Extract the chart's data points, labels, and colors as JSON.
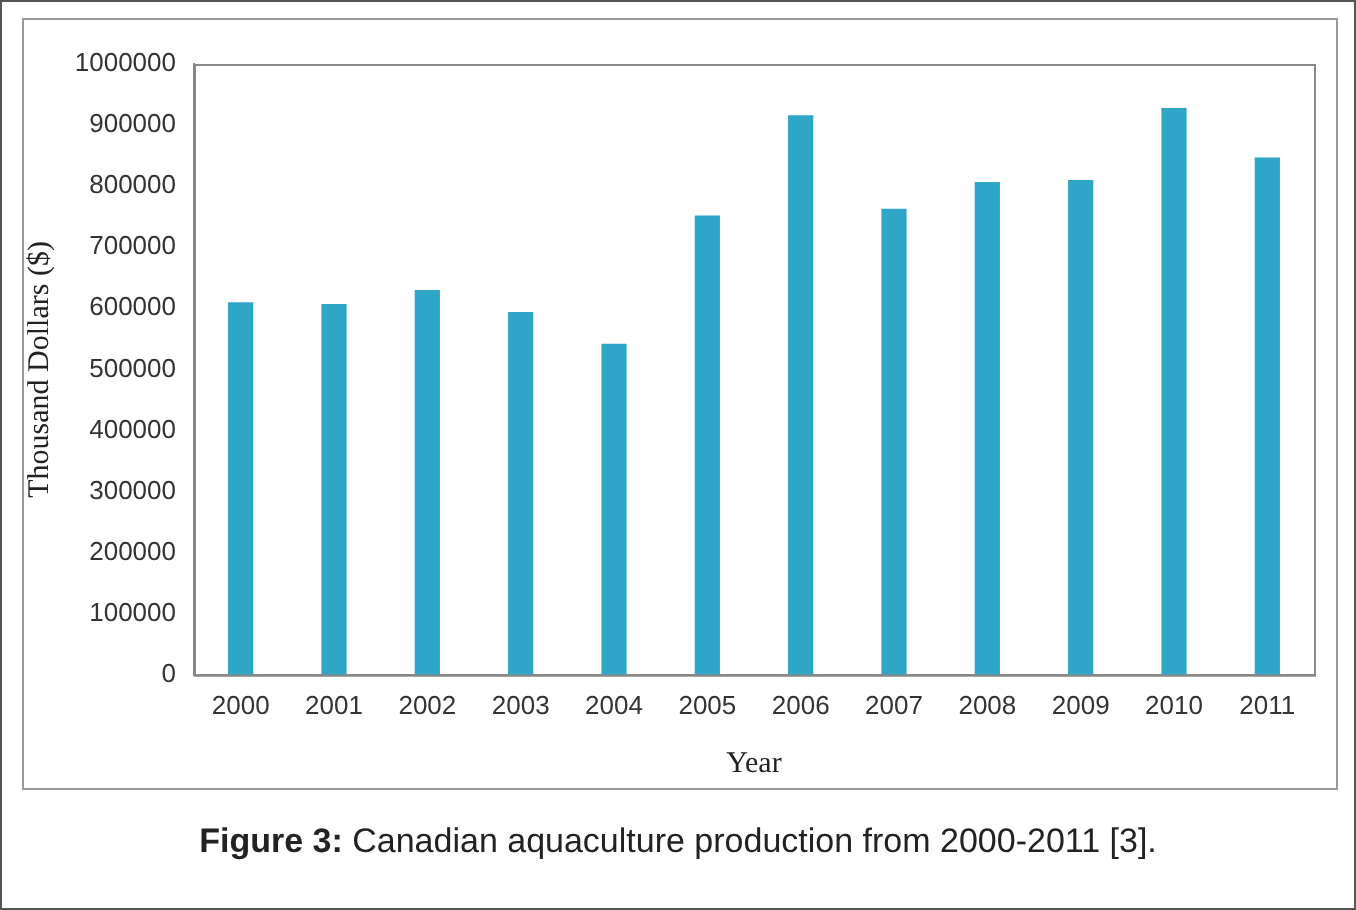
{
  "chart_data": {
    "type": "bar",
    "xlabel": "Year",
    "ylabel": "Thousand Dollars ($)",
    "categories": [
      "2000",
      "2001",
      "2002",
      "2003",
      "2004",
      "2005",
      "2006",
      "2007",
      "2008",
      "2009",
      "2010",
      "2011"
    ],
    "values": [
      610000,
      607000,
      630000,
      594000,
      542000,
      752000,
      916000,
      763000,
      807000,
      810000,
      928000,
      847000
    ],
    "color": "#2fa6c8",
    "ylim": [
      0,
      1000000
    ],
    "yticks": [
      0,
      100000,
      200000,
      300000,
      400000,
      500000,
      600000,
      700000,
      800000,
      900000,
      1000000
    ],
    "grid": false,
    "legend": false,
    "annotations": [
      "Figure 3: Canadian aquaculture production from 2000-2011 [3]."
    ]
  }
}
